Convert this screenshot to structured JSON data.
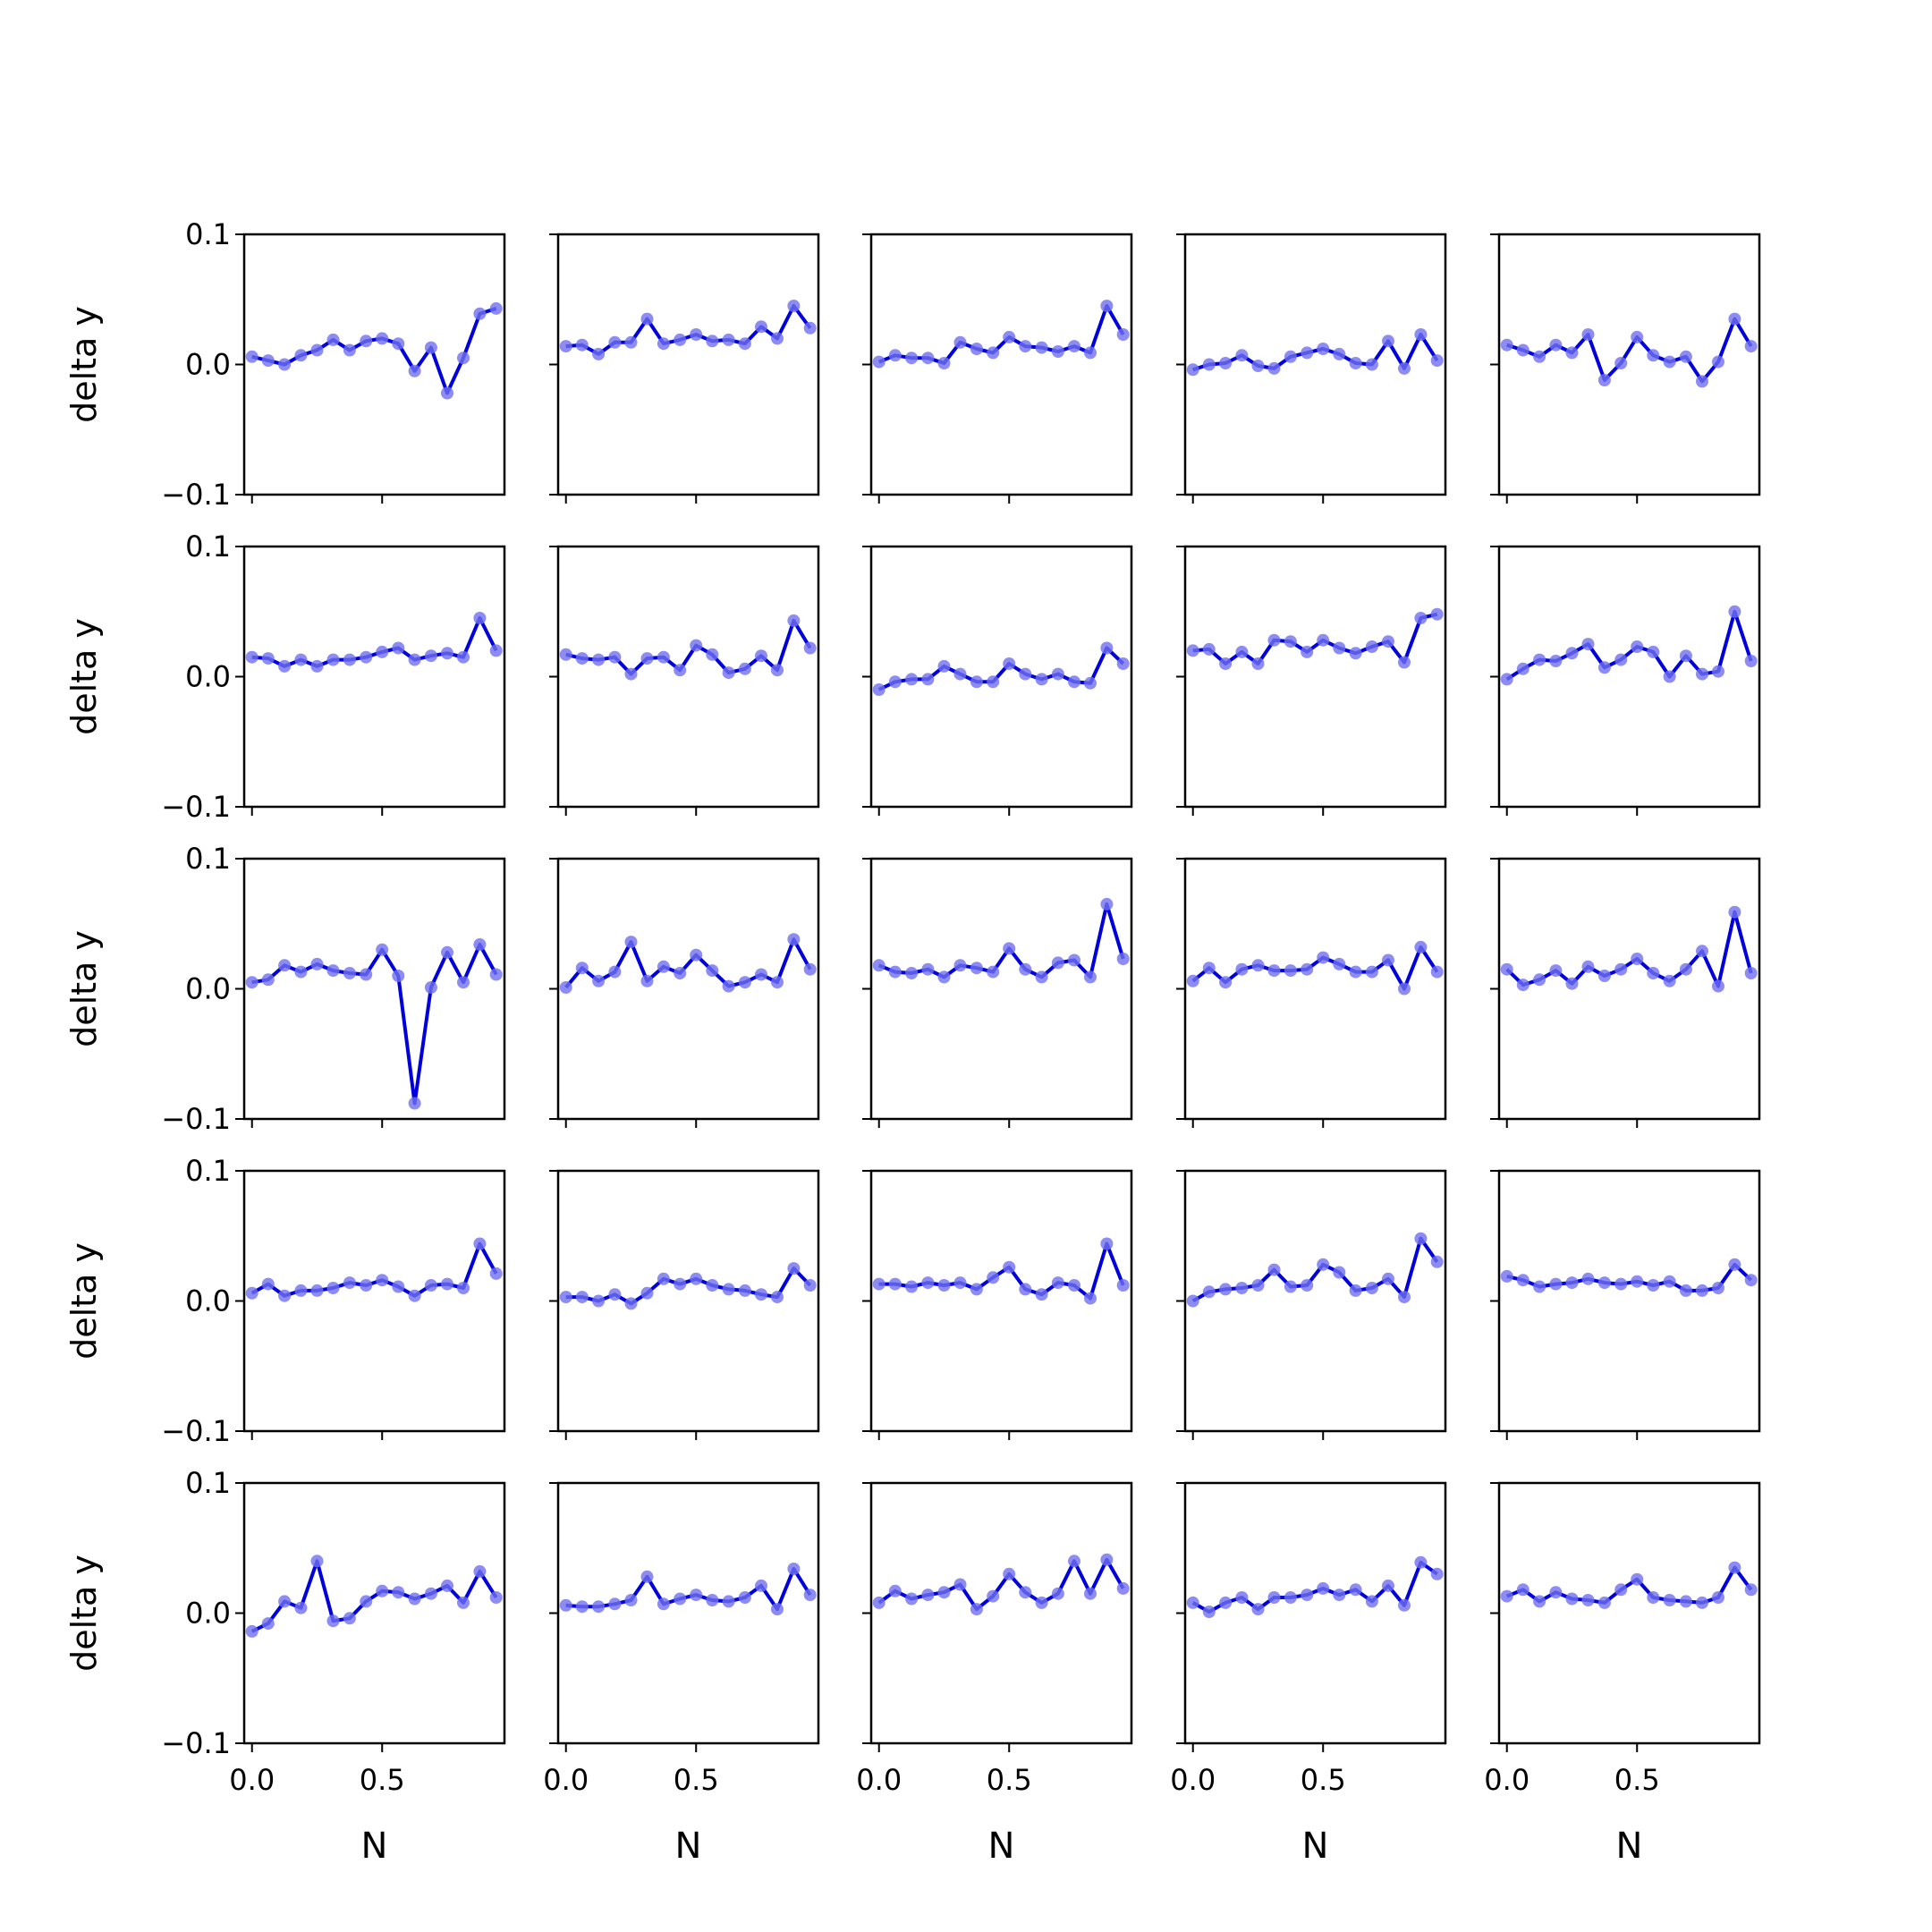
{
  "figure": {
    "ylabel": "delta y",
    "xlabel": "N",
    "x_tick_labels": [
      "0.0",
      "0.5"
    ],
    "y_tick_labels": [
      "0.1",
      "0.0",
      "−0.1"
    ],
    "line_color": "#0000dd",
    "marker_color": "#6f6ff0"
  },
  "chart_data": {
    "type": "line",
    "layout": "5x5 grid of subplots, shared axes",
    "x": [
      0.0,
      0.062,
      0.125,
      0.188,
      0.25,
      0.312,
      0.375,
      0.438,
      0.5,
      0.562,
      0.625,
      0.688,
      0.75,
      0.812,
      0.875,
      0.938
    ],
    "xlim": [
      -0.03,
      0.97
    ],
    "xticks": [
      0.0,
      0.5
    ],
    "ylim": [
      -0.1,
      0.1
    ],
    "yticks": [
      0.1,
      0.0,
      -0.1
    ],
    "xlabel": "N",
    "ylabel": "delta y",
    "grid": false,
    "panels": [
      [
        0.006,
        0.003,
        0.0,
        0.007,
        0.011,
        0.019,
        0.011,
        0.018,
        0.02,
        0.016,
        -0.005,
        0.013,
        -0.022,
        0.005,
        0.039,
        0.043
      ],
      [
        0.014,
        0.015,
        0.008,
        0.017,
        0.017,
        0.035,
        0.016,
        0.019,
        0.023,
        0.018,
        0.019,
        0.016,
        0.029,
        0.02,
        0.045,
        0.028
      ],
      [
        0.002,
        0.007,
        0.005,
        0.005,
        0.001,
        0.017,
        0.012,
        0.009,
        0.021,
        0.014,
        0.013,
        0.01,
        0.014,
        0.009,
        0.045,
        0.023
      ],
      [
        -0.004,
        0.0,
        0.001,
        0.007,
        -0.001,
        -0.003,
        0.006,
        0.009,
        0.012,
        0.008,
        0.001,
        0.0,
        0.018,
        -0.003,
        0.023,
        0.003
      ],
      [
        0.015,
        0.011,
        0.006,
        0.015,
        0.009,
        0.023,
        -0.012,
        0.001,
        0.021,
        0.007,
        0.002,
        0.006,
        -0.013,
        0.002,
        0.035,
        0.014
      ],
      [
        0.015,
        0.014,
        0.008,
        0.013,
        0.008,
        0.013,
        0.013,
        0.015,
        0.019,
        0.022,
        0.013,
        0.016,
        0.018,
        0.015,
        0.045,
        0.02
      ],
      [
        0.017,
        0.014,
        0.013,
        0.015,
        0.002,
        0.014,
        0.015,
        0.005,
        0.024,
        0.017,
        0.003,
        0.006,
        0.016,
        0.005,
        0.043,
        0.022
      ],
      [
        -0.01,
        -0.004,
        -0.002,
        -0.002,
        0.008,
        0.002,
        -0.004,
        -0.004,
        0.01,
        0.002,
        -0.002,
        0.002,
        -0.004,
        -0.005,
        0.022,
        0.01
      ],
      [
        0.02,
        0.021,
        0.01,
        0.019,
        0.01,
        0.028,
        0.027,
        0.019,
        0.028,
        0.022,
        0.018,
        0.023,
        0.027,
        0.011,
        0.045,
        0.048
      ],
      [
        -0.002,
        0.006,
        0.013,
        0.012,
        0.018,
        0.025,
        0.007,
        0.013,
        0.023,
        0.019,
        0.0,
        0.016,
        0.002,
        0.004,
        0.05,
        0.012
      ],
      [
        0.005,
        0.007,
        0.018,
        0.013,
        0.019,
        0.014,
        0.012,
        0.011,
        0.03,
        0.01,
        -0.088,
        0.001,
        0.028,
        0.005,
        0.034,
        0.011
      ],
      [
        0.001,
        0.016,
        0.006,
        0.013,
        0.036,
        0.006,
        0.017,
        0.012,
        0.026,
        0.014,
        0.002,
        0.005,
        0.011,
        0.005,
        0.038,
        0.015
      ],
      [
        0.018,
        0.013,
        0.012,
        0.015,
        0.009,
        0.018,
        0.016,
        0.013,
        0.031,
        0.015,
        0.009,
        0.02,
        0.022,
        0.009,
        0.065,
        0.023
      ],
      [
        0.006,
        0.016,
        0.005,
        0.015,
        0.018,
        0.014,
        0.014,
        0.015,
        0.024,
        0.019,
        0.013,
        0.013,
        0.022,
        0.0,
        0.032,
        0.013
      ],
      [
        0.015,
        0.003,
        0.007,
        0.014,
        0.004,
        0.017,
        0.01,
        0.015,
        0.023,
        0.012,
        0.006,
        0.015,
        0.029,
        0.002,
        0.059,
        0.012
      ],
      [
        0.006,
        0.013,
        0.004,
        0.008,
        0.008,
        0.01,
        0.014,
        0.012,
        0.016,
        0.011,
        0.004,
        0.012,
        0.013,
        0.01,
        0.044,
        0.021
      ],
      [
        0.003,
        0.003,
        0.0,
        0.005,
        -0.002,
        0.006,
        0.017,
        0.013,
        0.017,
        0.012,
        0.009,
        0.008,
        0.005,
        0.003,
        0.025,
        0.012
      ],
      [
        0.013,
        0.013,
        0.011,
        0.014,
        0.012,
        0.014,
        0.009,
        0.018,
        0.026,
        0.009,
        0.005,
        0.014,
        0.012,
        0.002,
        0.044,
        0.012
      ],
      [
        0.0,
        0.007,
        0.009,
        0.01,
        0.012,
        0.024,
        0.011,
        0.012,
        0.028,
        0.022,
        0.008,
        0.01,
        0.017,
        0.003,
        0.048,
        0.03
      ],
      [
        0.019,
        0.016,
        0.011,
        0.013,
        0.014,
        0.017,
        0.014,
        0.013,
        0.015,
        0.012,
        0.015,
        0.008,
        0.008,
        0.01,
        0.028,
        0.016
      ],
      [
        -0.014,
        -0.008,
        0.009,
        0.004,
        0.04,
        -0.006,
        -0.004,
        0.009,
        0.017,
        0.016,
        0.011,
        0.015,
        0.021,
        0.008,
        0.032,
        0.012
      ],
      [
        0.006,
        0.005,
        0.005,
        0.007,
        0.01,
        0.028,
        0.007,
        0.011,
        0.014,
        0.01,
        0.009,
        0.012,
        0.021,
        0.003,
        0.034,
        0.014
      ],
      [
        0.008,
        0.017,
        0.011,
        0.014,
        0.016,
        0.022,
        0.003,
        0.013,
        0.03,
        0.016,
        0.008,
        0.015,
        0.04,
        0.015,
        0.041,
        0.019
      ],
      [
        0.008,
        0.001,
        0.008,
        0.012,
        0.003,
        0.012,
        0.012,
        0.014,
        0.019,
        0.014,
        0.018,
        0.009,
        0.021,
        0.006,
        0.039,
        0.03
      ],
      [
        0.013,
        0.018,
        0.009,
        0.016,
        0.011,
        0.01,
        0.008,
        0.018,
        0.026,
        0.012,
        0.01,
        0.009,
        0.008,
        0.012,
        0.035,
        0.018
      ]
    ]
  }
}
